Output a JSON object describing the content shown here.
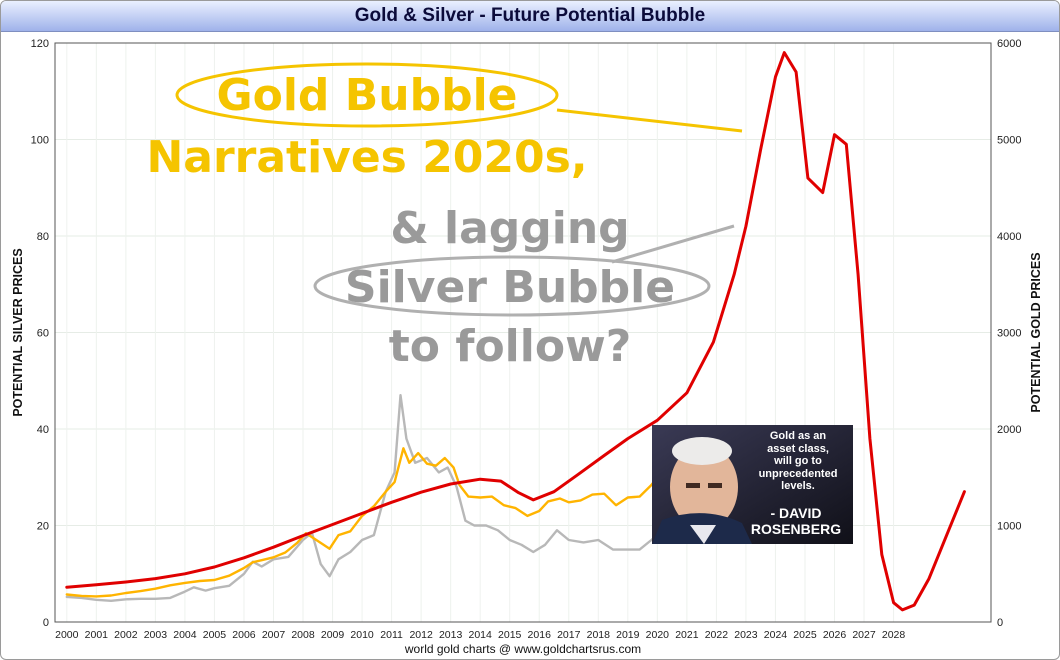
{
  "chart_data": {
    "type": "line",
    "title": "Gold & Silver - Future Potential Bubble",
    "footer": "world gold charts @ www.goldchartsrus.com",
    "ylabel_left": "POTENTIAL SILVER PRICES",
    "ylabel_right": "POTENTIAL GOLD PRICES",
    "x_ticks": [
      "2000",
      "2001",
      "2002",
      "2003",
      "2004",
      "2005",
      "2006",
      "2007",
      "2008",
      "2009",
      "2010",
      "2011",
      "2012",
      "2013",
      "2014",
      "2015",
      "2016",
      "2017",
      "2018",
      "2019",
      "2020",
      "2021",
      "2022",
      "2023",
      "2024",
      "2025",
      "2026",
      "2027",
      "2028"
    ],
    "xlim": [
      1999.6,
      2031.3
    ],
    "y_left": {
      "min": 0,
      "max": 120,
      "ticks": [
        "0",
        "20",
        "40",
        "60",
        "80",
        "100",
        "120"
      ]
    },
    "y_right": {
      "min": 0,
      "max": 6000,
      "ticks": [
        "0",
        "1000",
        "2000",
        "3000",
        "4000",
        "5000",
        "6000"
      ]
    },
    "grid": true,
    "series": [
      {
        "color": "#e00000",
        "axis": "left",
        "x": [
          2000,
          2001,
          2002,
          2003,
          2004,
          2005,
          2006,
          2007,
          2008,
          2009,
          2010,
          2011,
          2012,
          2013,
          2014,
          2014.7,
          2015.3,
          2015.8,
          2016.5,
          2017.3,
          2018.2,
          2019,
          2020,
          2021,
          2021.9,
          2022.6,
          2023,
          2023.5,
          2024,
          2024.3,
          2024.7,
          2025.1,
          2025.6,
          2026,
          2026.4,
          2026.8,
          2027.2,
          2027.6,
          2028,
          2028.3,
          2028.7,
          2029.2,
          2029.8,
          2030.4
        ],
        "values": [
          7.2,
          7.7,
          8.3,
          9.0,
          10.0,
          11.4,
          13.3,
          15.5,
          17.9,
          20.2,
          22.5,
          24.8,
          26.9,
          28.6,
          29.6,
          29.2,
          26.8,
          25.3,
          27.0,
          30.5,
          34.5,
          38.0,
          41.8,
          47.5,
          58.0,
          72.0,
          82.0,
          98.0,
          113.0,
          118.0,
          114.0,
          92.0,
          89.0,
          101.0,
          99.0,
          72.0,
          38.0,
          14.0,
          4.0,
          2.5,
          3.5,
          9.0,
          18.0,
          27.0
        ]
      },
      {
        "color": "#ffb400",
        "axis": "right",
        "x": [
          2000,
          2000.5,
          2001,
          2001.5,
          2002,
          2002.5,
          2003,
          2003.5,
          2004,
          2004.5,
          2005,
          2005.5,
          2006,
          2006.3,
          2006.6,
          2007,
          2007.4,
          2007.8,
          2008.1,
          2008.3,
          2008.6,
          2008.9,
          2009.2,
          2009.6,
          2010,
          2010.4,
          2010.8,
          2011.1,
          2011.4,
          2011.6,
          2011.9,
          2012.2,
          2012.5,
          2012.8,
          2013.1,
          2013.3,
          2013.6,
          2014,
          2014.4,
          2014.8,
          2015.2,
          2015.6,
          2016,
          2016.3,
          2016.7,
          2017,
          2017.4,
          2017.8,
          2018.2,
          2018.6,
          2019,
          2019.4,
          2019.8,
          2020
        ],
        "values": [
          285,
          270,
          265,
          275,
          300,
          320,
          345,
          380,
          405,
          425,
          435,
          480,
          560,
          620,
          640,
          670,
          720,
          820,
          920,
          880,
          820,
          760,
          900,
          940,
          1100,
          1200,
          1350,
          1450,
          1800,
          1650,
          1750,
          1640,
          1620,
          1700,
          1600,
          1420,
          1300,
          1290,
          1300,
          1210,
          1180,
          1100,
          1150,
          1250,
          1280,
          1240,
          1260,
          1320,
          1330,
          1210,
          1290,
          1300,
          1420,
          1500
        ]
      },
      {
        "color": "#b8b8b8",
        "axis": "left",
        "x": [
          2000,
          2000.5,
          2001,
          2001.5,
          2002,
          2002.5,
          2003,
          2003.5,
          2004,
          2004.3,
          2004.7,
          2005,
          2005.5,
          2006,
          2006.3,
          2006.6,
          2007,
          2007.5,
          2008,
          2008.3,
          2008.6,
          2008.9,
          2009.2,
          2009.6,
          2010,
          2010.4,
          2010.8,
          2011.1,
          2011.3,
          2011.5,
          2011.8,
          2012.2,
          2012.6,
          2012.9,
          2013.2,
          2013.5,
          2013.8,
          2014.2,
          2014.6,
          2015,
          2015.4,
          2015.8,
          2016.2,
          2016.6,
          2017,
          2017.5,
          2018,
          2018.5,
          2019,
          2019.4,
          2019.8,
          2020
        ],
        "values": [
          5.2,
          5.0,
          4.6,
          4.4,
          4.7,
          4.8,
          4.8,
          5.0,
          6.3,
          7.2,
          6.5,
          7.0,
          7.5,
          10,
          12.5,
          11.5,
          13,
          13.5,
          17,
          18.5,
          12,
          9.5,
          13,
          14.5,
          17,
          18,
          27,
          31,
          47,
          38,
          33,
          34,
          31,
          32,
          28,
          21,
          20,
          20,
          19,
          17,
          16,
          14.5,
          16,
          19,
          17,
          16.5,
          17,
          15,
          15,
          15,
          17,
          18
        ]
      }
    ],
    "annotations": {
      "gold_line1": "Gold Bubble",
      "gold_line2": "Narratives 2020s,",
      "silver_line1": "& lagging",
      "silver_line2": "Silver Bubble",
      "silver_line3": "to follow?"
    },
    "quote": {
      "text": [
        "Gold as an",
        "asset class,",
        "will go to",
        "unprecedented",
        "levels."
      ],
      "author": [
        "- DAVID",
        "ROSENBERG"
      ]
    },
    "colors": {
      "gold_text": "#f5c400",
      "silver_text": "#9a9a9a",
      "bubble_line": "#e00000"
    }
  }
}
